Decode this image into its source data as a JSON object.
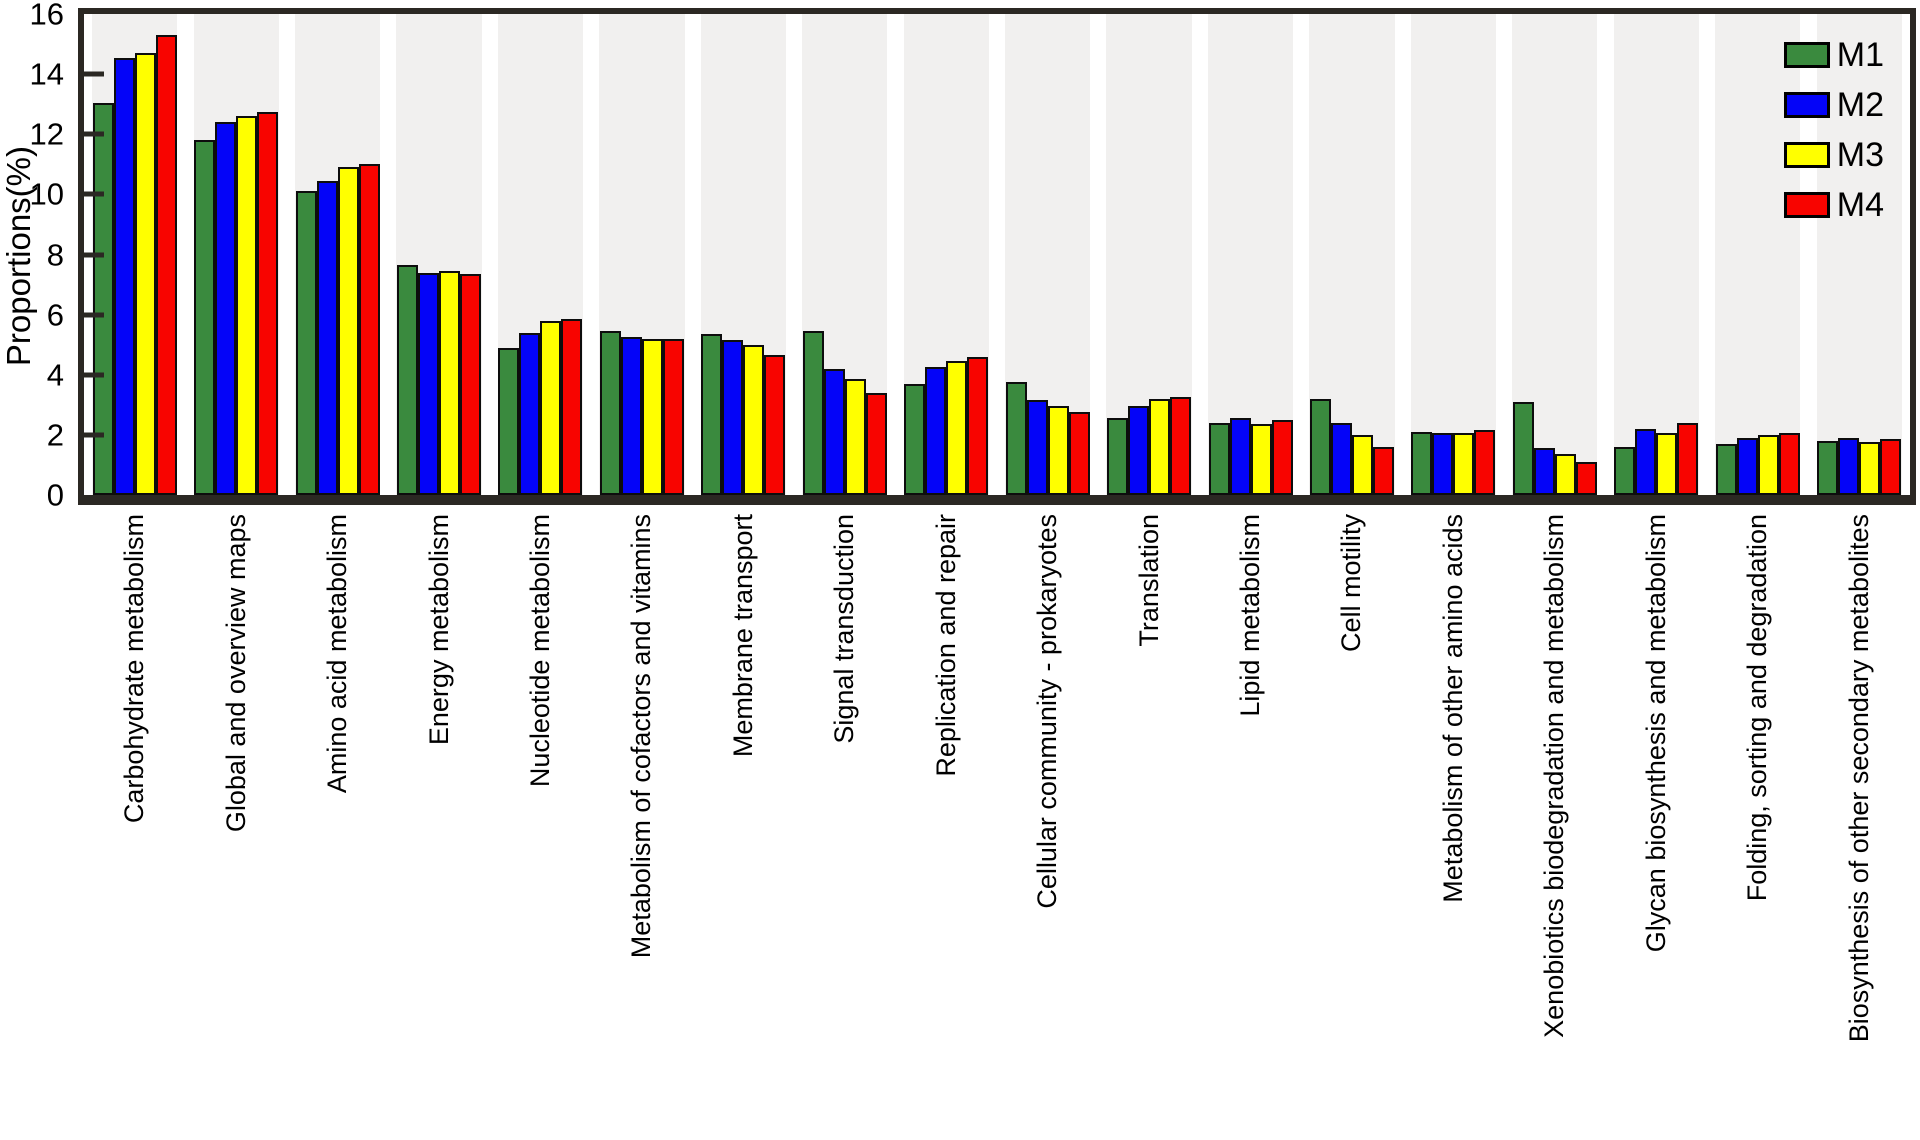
{
  "chart_data": {
    "type": "bar",
    "title": "",
    "xlabel": "",
    "ylabel": "Proportions(%)",
    "ylim": [
      0,
      16
    ],
    "yticks": [
      0,
      2,
      4,
      6,
      8,
      10,
      12,
      14,
      16
    ],
    "grid": false,
    "legend_position": "top-right-inside",
    "plot_background": "alternating-light-gray-bands",
    "band_color": "#F1F0EF",
    "axis_color": "#2B2823",
    "bar_outline_color": "#0D0D0D",
    "categories": [
      "Carbohydrate metabolism",
      "Global and overview maps",
      "Amino acid metabolism",
      "Energy metabolism",
      "Nucleotide metabolism",
      "Metabolism of cofactors and vitamins",
      "Membrane transport",
      "Signal transduction",
      "Replication and repair",
      "Cellular community - prokaryotes",
      "Translation",
      "Lipid metabolism",
      "Cell motility",
      "Metabolism of other amino acids",
      "Xenobiotics biodegradation and metabolism",
      "Glycan biosynthesis and metabolism",
      "Folding, sorting and degradation",
      "Biosynthesis of other secondary metabolites"
    ],
    "series": [
      {
        "name": "M1",
        "color": "#3A8A3E",
        "values": [
          13.05,
          11.8,
          10.1,
          7.65,
          4.9,
          5.45,
          5.35,
          5.45,
          3.7,
          3.75,
          2.55,
          2.4,
          3.2,
          2.1,
          3.1,
          1.6,
          1.7,
          1.8
        ]
      },
      {
        "name": "M2",
        "color": "#0404F8",
        "values": [
          14.55,
          12.4,
          10.45,
          7.4,
          5.4,
          5.25,
          5.15,
          4.2,
          4.25,
          3.15,
          2.95,
          2.55,
          2.4,
          2.05,
          1.55,
          2.2,
          1.9,
          1.9
        ]
      },
      {
        "name": "M3",
        "color": "#FFFF00",
        "values": [
          14.7,
          12.6,
          10.9,
          7.45,
          5.8,
          5.2,
          5.0,
          3.85,
          4.45,
          2.95,
          3.2,
          2.35,
          2.0,
          2.05,
          1.35,
          2.05,
          2.0,
          1.75
        ]
      },
      {
        "name": "M4",
        "color": "#F80400",
        "values": [
          15.3,
          12.75,
          11.0,
          7.35,
          5.85,
          5.2,
          4.65,
          3.4,
          4.6,
          2.75,
          3.25,
          2.5,
          1.6,
          2.15,
          1.1,
          2.4,
          2.05,
          1.85
        ]
      }
    ]
  }
}
